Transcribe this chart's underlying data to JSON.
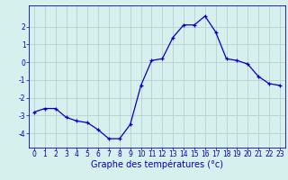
{
  "x": [
    0,
    1,
    2,
    3,
    4,
    5,
    6,
    7,
    8,
    9,
    10,
    11,
    12,
    13,
    14,
    15,
    16,
    17,
    18,
    19,
    20,
    21,
    22,
    23
  ],
  "y": [
    -2.8,
    -2.6,
    -2.6,
    -3.1,
    -3.3,
    -3.4,
    -3.8,
    -4.3,
    -4.3,
    -3.5,
    -1.3,
    0.1,
    0.2,
    1.4,
    2.1,
    2.1,
    2.6,
    1.7,
    0.2,
    0.1,
    -0.1,
    -0.8,
    -1.2,
    -1.3
  ],
  "line_color": "#0000cc",
  "marker": "+",
  "markersize": 3,
  "bg_color": "#d6f0ee",
  "grid_color": "#b0d4d0",
  "tick_label_color": "#0000cc",
  "axis_label_color": "#0000cc",
  "xlabel": "Graphe des températures (°c)",
  "xlabel_fontsize": 7,
  "tick_fontsize": 5.5,
  "ylim": [
    -4.8,
    3.2
  ],
  "yticks": [
    -4,
    -3,
    -2,
    -1,
    0,
    1,
    2
  ],
  "xlim": [
    -0.5,
    23.5
  ],
  "xticks": [
    0,
    1,
    2,
    3,
    4,
    5,
    6,
    7,
    8,
    9,
    10,
    11,
    12,
    13,
    14,
    15,
    16,
    17,
    18,
    19,
    20,
    21,
    22,
    23
  ]
}
